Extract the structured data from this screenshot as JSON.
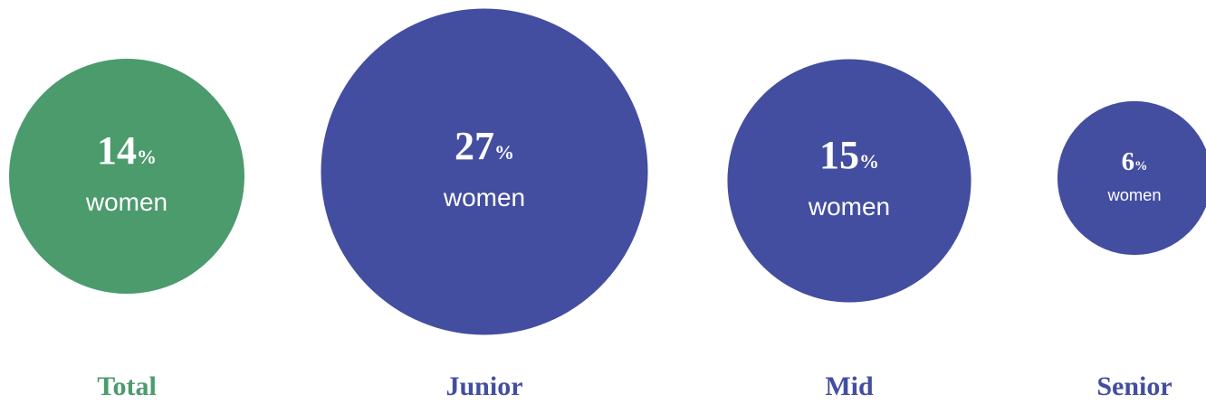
{
  "chart_data": {
    "type": "bubble",
    "categories": [
      "Total",
      "Junior",
      "Mid",
      "Senior"
    ],
    "values": [
      14,
      27,
      15,
      6
    ],
    "unit": "%",
    "sublabel": "women",
    "colors": [
      "#4b9b6d",
      "#434ea0",
      "#434ea0",
      "#434ea0"
    ]
  }
}
